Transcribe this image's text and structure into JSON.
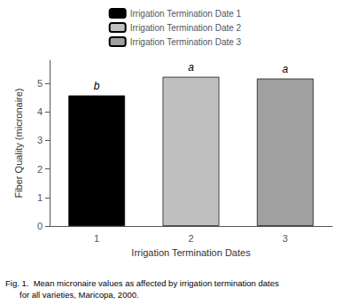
{
  "chart_data": {
    "type": "bar",
    "categories": [
      "1",
      "2",
      "3"
    ],
    "series": [
      {
        "name": "Irrigation Termination Date 1",
        "color": "#000000",
        "values": [
          4.57,
          null,
          null
        ]
      },
      {
        "name": "Irrigation Termination Date 2",
        "color": "#c0c0c0",
        "values": [
          null,
          5.22,
          null
        ]
      },
      {
        "name": "Irrigation Termination Date 3",
        "color": "#a0a0a0",
        "values": [
          null,
          null,
          5.16
        ]
      }
    ],
    "annotations": [
      "b",
      "a",
      "a"
    ],
    "xlabel": "Irrigation Termination Dates",
    "ylabel": "Fiber Quality (micronaire)",
    "ylim": [
      0,
      5.8
    ],
    "yticks": [
      0,
      1,
      2,
      3,
      4,
      5
    ],
    "caption": [
      "Fig. 1.  Mean micronaire values as affected by irrigation termination dates",
      "for all varieties, Maricopa, 2000."
    ],
    "legend": "top",
    "grid": false
  }
}
